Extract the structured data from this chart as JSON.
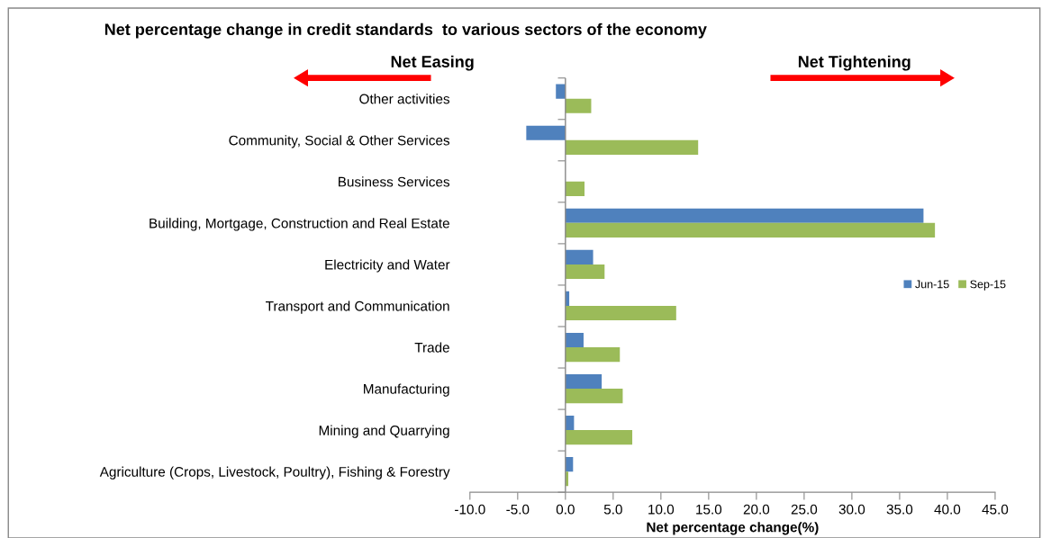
{
  "chart_data": {
    "type": "bar",
    "orientation": "horizontal",
    "title": "Net percentage change in credit standards  to various sectors of the economy",
    "xlabel": "Net percentage change(%)",
    "categories": [
      "Other activities",
      "Community, Social & Other Services",
      "Business Services",
      "Building, Mortgage, Construction and Real Estate",
      "Electricity and Water",
      "Transport and Communication",
      "Trade",
      "Manufacturing",
      "Mining and Quarrying",
      "Agriculture (Crops, Livestock, Poultry), Fishing & Forestry"
    ],
    "series": [
      {
        "name": "Jun-15",
        "color": "#4f81bd",
        "values": [
          -1.0,
          -4.1,
          0,
          37.5,
          2.9,
          0.4,
          1.9,
          3.8,
          0.9,
          0.8
        ]
      },
      {
        "name": "Sep-15",
        "color": "#9bbb59",
        "values": [
          2.7,
          13.9,
          2.0,
          38.7,
          4.1,
          11.6,
          5.7,
          6.0,
          7.0,
          0.3
        ]
      }
    ],
    "xlim": [
      -10,
      45
    ],
    "xticks": [
      {
        "value": -10,
        "label": "-10.0"
      },
      {
        "value": -5,
        "label": "-5.0"
      },
      {
        "value": 0,
        "label": "0.0"
      },
      {
        "value": 5,
        "label": "5.0"
      },
      {
        "value": 10,
        "label": "10.0"
      },
      {
        "value": 15,
        "label": "15.0"
      },
      {
        "value": 20,
        "label": "20.0"
      },
      {
        "value": 25,
        "label": "25.0"
      },
      {
        "value": 30,
        "label": "30.0"
      },
      {
        "value": 35,
        "label": "35.0"
      },
      {
        "value": 40,
        "label": "40.0"
      },
      {
        "value": 45,
        "label": "45.0"
      }
    ],
    "annotations": [
      "Net Easing",
      "Net Tightening"
    ],
    "ref_lines": [
      {
        "axis": "x",
        "value": 0,
        "color": "#888888"
      }
    ],
    "legend": "right",
    "grid": false
  }
}
